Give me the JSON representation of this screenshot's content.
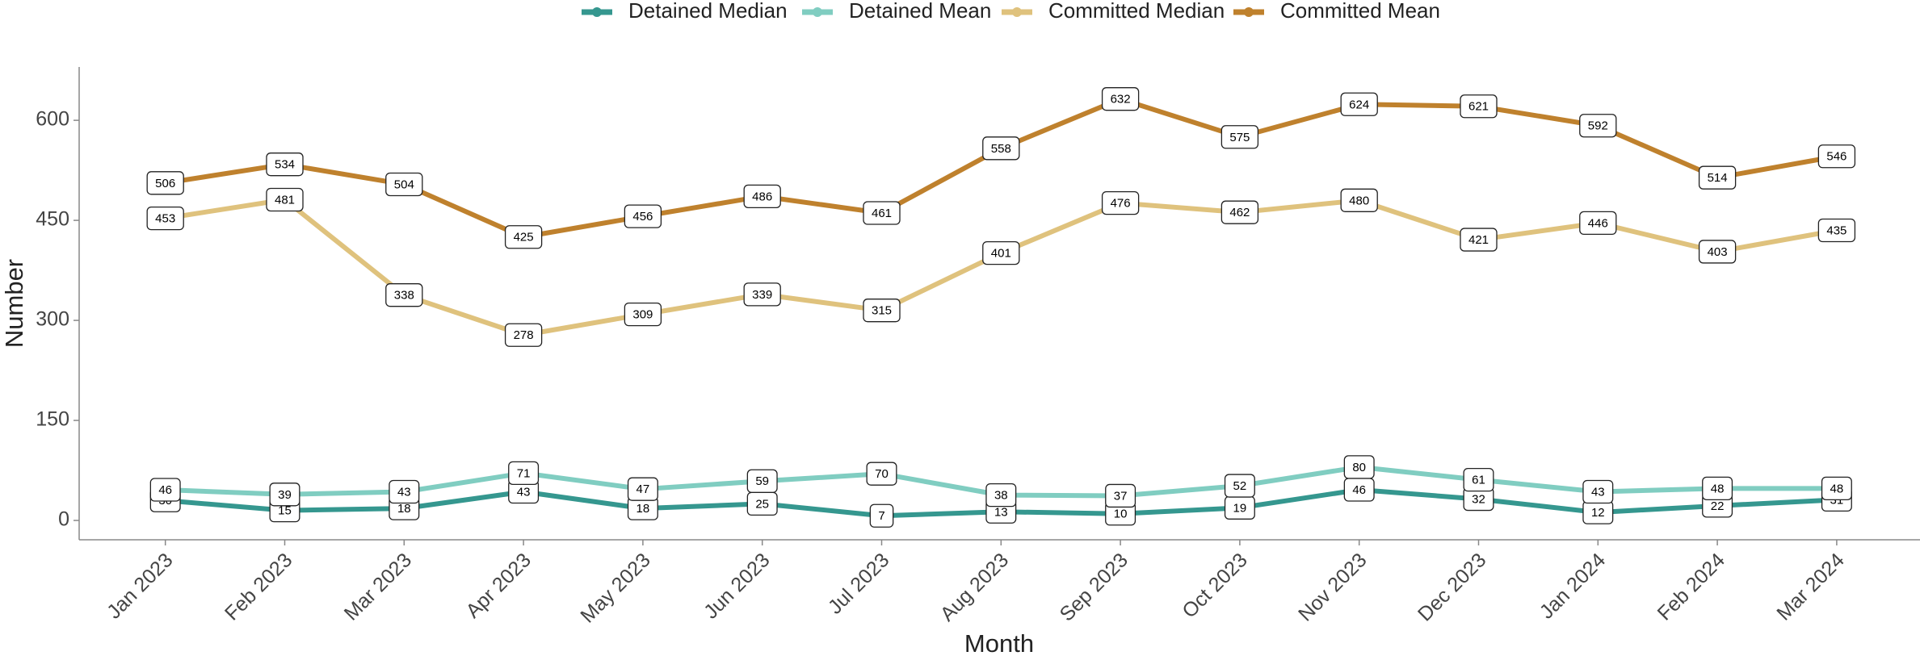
{
  "chart_data": {
    "type": "line",
    "x_label": "Month",
    "y_label": "Number",
    "categories": [
      "Jan 2023",
      "Feb 2023",
      "Mar 2023",
      "Apr 2023",
      "May 2023",
      "Jun 2023",
      "Jul 2023",
      "Aug 2023",
      "Sep 2023",
      "Oct 2023",
      "Nov 2023",
      "Dec 2023",
      "Jan 2024",
      "Feb 2024",
      "Mar 2024"
    ],
    "series": [
      {
        "name": "Detained Median",
        "color": "#35978f",
        "values": [
          30,
          15,
          18,
          43,
          18,
          25,
          7,
          13,
          10,
          19,
          46,
          32,
          12,
          22,
          31
        ]
      },
      {
        "name": "Detained Mean",
        "color": "#80cdc1",
        "values": [
          46,
          39,
          43,
          71,
          47,
          59,
          70,
          38,
          37,
          52,
          80,
          61,
          43,
          48,
          48
        ]
      },
      {
        "name": "Committed Median",
        "color": "#dfc27d",
        "values": [
          453,
          481,
          338,
          278,
          309,
          339,
          315,
          401,
          476,
          462,
          480,
          421,
          446,
          403,
          435
        ]
      },
      {
        "name": "Committed Mean",
        "color": "#bf812d",
        "values": [
          506,
          534,
          504,
          425,
          456,
          486,
          461,
          558,
          632,
          575,
          624,
          621,
          592,
          514,
          546
        ]
      }
    ],
    "ylim": [
      -29,
      680
    ],
    "yticks": [
      0,
      150,
      300,
      450,
      600
    ],
    "legend": "top"
  }
}
